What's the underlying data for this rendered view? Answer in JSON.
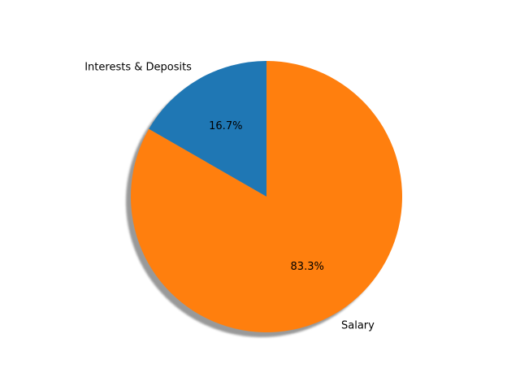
{
  "chart_data": {
    "type": "pie",
    "title": "",
    "start_angle_deg": 90,
    "direction": "counterclockwise",
    "shadow": true,
    "slices": [
      {
        "label": "Interests & Deposits",
        "value": 16.7,
        "pct_label": "16.7%",
        "color": "#1f77b4"
      },
      {
        "label": "Salary",
        "value": 83.3,
        "pct_label": "83.3%",
        "color": "#ff7f0e"
      }
    ]
  }
}
